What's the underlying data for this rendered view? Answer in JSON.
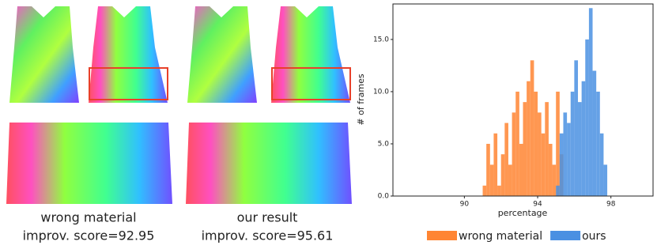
{
  "panels": [
    {
      "caption": "wrong material",
      "score_label": "improv. score=92.95"
    },
    {
      "caption": "our result",
      "score_label": "improv. score=95.61"
    }
  ],
  "chart_data": {
    "type": "histogram",
    "xlabel": "percentage",
    "ylabel": "# of frames",
    "xlim": [
      86.1,
      100.3
    ],
    "ylim": [
      0,
      18.4
    ],
    "xticks": [
      90,
      94,
      98
    ],
    "yticks": [
      {
        "value": 0,
        "label": "0.0"
      },
      {
        "value": 5,
        "label": "5.0"
      },
      {
        "value": 10,
        "label": "10.0"
      },
      {
        "value": 15,
        "label": "15.0"
      }
    ],
    "legend": "below",
    "series": [
      {
        "name": "wrong material",
        "color": "#ff8533",
        "bins": [
          91.0,
          91.2,
          91.4,
          91.6,
          91.8,
          92.0,
          92.2,
          92.4,
          92.6,
          92.8,
          93.0,
          93.2,
          93.4,
          93.6,
          93.8,
          94.0,
          94.2,
          94.4,
          94.6,
          94.8,
          95.0,
          95.2,
          95.4
        ],
        "values": [
          1,
          5,
          3,
          6,
          1,
          4,
          7,
          3,
          8,
          10,
          5,
          9,
          11,
          13,
          10,
          8,
          6,
          9,
          5,
          3,
          10,
          4
        ]
      },
      {
        "name": "ours",
        "color": "#4a90e2",
        "bins": [
          95.0,
          95.2,
          95.4,
          95.6,
          95.8,
          96.0,
          96.2,
          96.4,
          96.6,
          96.8,
          97.0,
          97.2,
          97.4,
          97.6,
          97.8
        ],
        "values": [
          1,
          6,
          8,
          7,
          10,
          13,
          9,
          11,
          15,
          18,
          12,
          10,
          6,
          3
        ]
      }
    ]
  }
}
